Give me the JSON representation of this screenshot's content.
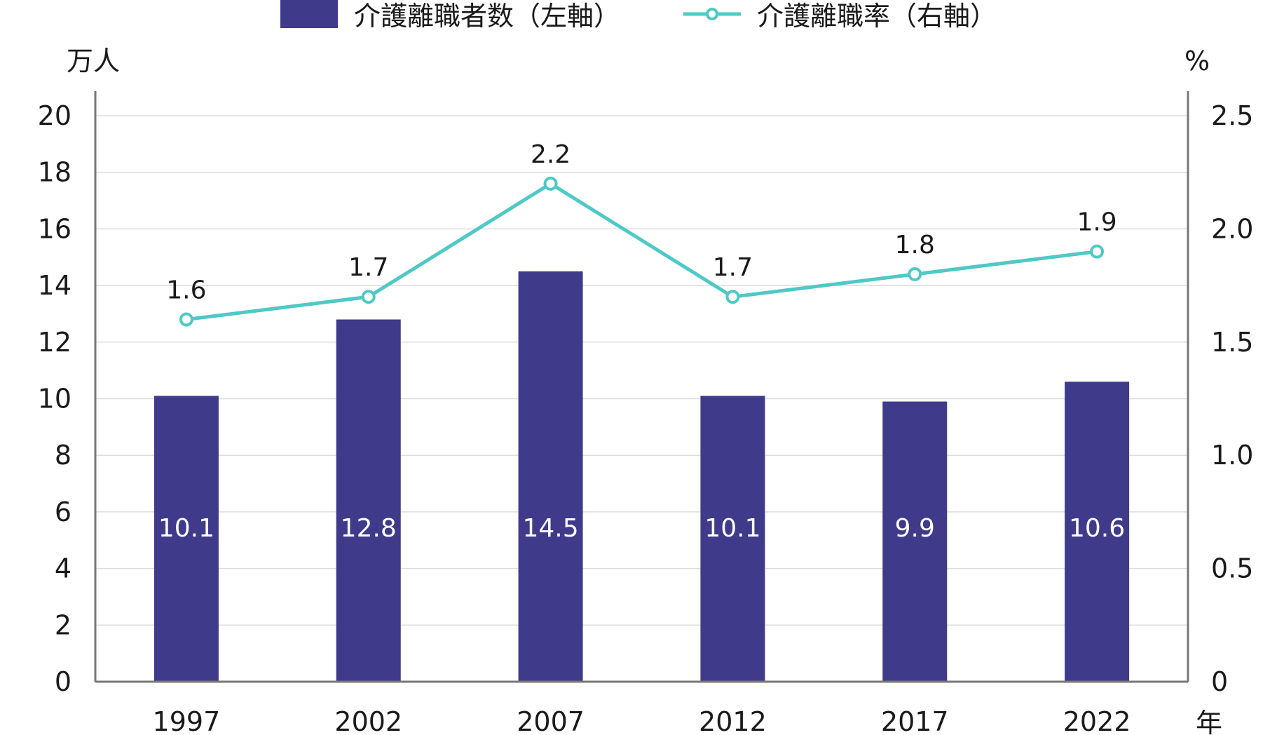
{
  "colors": {
    "bar": "#3f3a8a",
    "line": "#4ec9c6",
    "axis": "#777777",
    "grid": "#dddddd"
  },
  "legend": {
    "bar_label": "介護離職者数（左軸）",
    "line_label": "介護離職率（右軸）"
  },
  "axis_units": {
    "left": "万人",
    "right": "%",
    "x": "年"
  },
  "chart_data": {
    "type": "bar",
    "categories": [
      "1997",
      "2002",
      "2007",
      "2012",
      "2017",
      "2022"
    ],
    "series": [
      {
        "name": "介護離職者数（左軸）",
        "type": "bar",
        "axis": "left",
        "values": [
          10.1,
          12.8,
          14.5,
          10.1,
          9.9,
          10.6
        ],
        "labels": [
          "10.1",
          "12.8",
          "14.5",
          "10.1",
          "9.9",
          "10.6"
        ]
      },
      {
        "name": "介護離職率（右軸）",
        "type": "line",
        "axis": "right",
        "values": [
          1.6,
          1.7,
          2.2,
          1.7,
          1.8,
          1.9
        ],
        "labels": [
          "1.6",
          "1.7",
          "2.2",
          "1.7",
          "1.8",
          "1.9"
        ]
      }
    ],
    "y_left": {
      "lim": [
        0,
        20
      ],
      "ticks": [
        "0",
        "2",
        "4",
        "6",
        "8",
        "10",
        "12",
        "14",
        "16",
        "18",
        "20"
      ]
    },
    "y_right": {
      "lim": [
        0,
        2.5
      ],
      "ticks": [
        "0",
        "0.5",
        "1.0",
        "1.5",
        "2.0",
        "2.5"
      ]
    },
    "grid": true,
    "legend_position": "top"
  }
}
